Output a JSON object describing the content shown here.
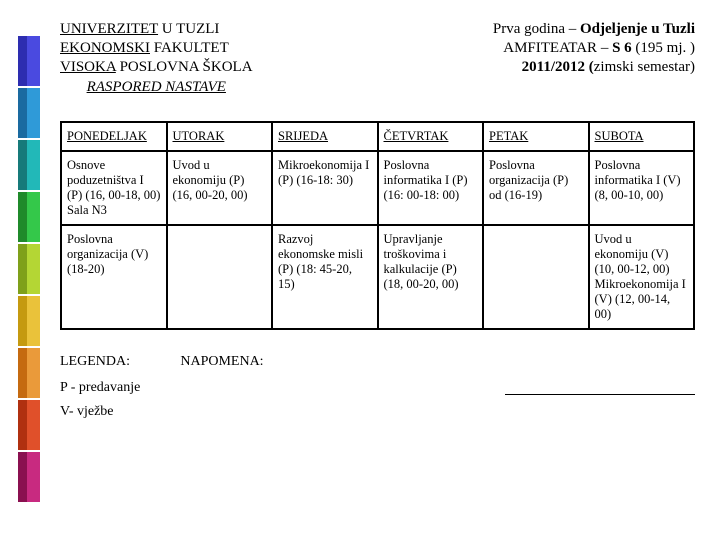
{
  "notch_colors": [
    {
      "c1": "#2d2db0",
      "c2": "#4a4ae0"
    },
    {
      "c1": "#1a6aa0",
      "c2": "#2f9ad8"
    },
    {
      "c1": "#167a7a",
      "c2": "#22b8b8"
    },
    {
      "c1": "#1f8a2a",
      "c2": "#34c84a"
    },
    {
      "c1": "#7fa01a",
      "c2": "#b4d634"
    },
    {
      "c1": "#c59a10",
      "c2": "#eac23a"
    },
    {
      "c1": "#c56a10",
      "c2": "#ea9a3a"
    },
    {
      "c1": "#b03010",
      "c2": "#e0502a"
    },
    {
      "c1": "#8a1050",
      "c2": "#c82a80"
    }
  ],
  "header": {
    "left": {
      "line1_u": "UNIVERZITET",
      "line1_rest": " U TUZLI",
      "line2_u": "EKONOMSKI",
      "line2_rest": " FAKULTET",
      "line3_u": "VISOKA",
      "line3_rest": " POSLOVNA ŠKOLA",
      "line4": "RASPORED NASTAVE"
    },
    "right": {
      "line1_pre": "Prva godina – ",
      "line1_b": "Odjeljenje u Tuzli",
      "line2_pre": "AMFITEATAR – ",
      "line2_b": "S 6",
      "line2_post": "   (195 mj. )",
      "line3_b": "2011/2012 (",
      "line3_post": "zimski semestar)"
    }
  },
  "table": {
    "headers": [
      "PONEDELJAK",
      "UTORAK",
      "SRIJEDA",
      "ČETVRTAK",
      "PETAK",
      "SUBOTA"
    ],
    "rows": [
      [
        "Osnove poduzetništva I (P) (16, 00-18, 00) Sala N3",
        "Uvod u ekonomiju (P) (16, 00-20, 00)",
        "Mikroekonomija  I          (P) (16-18: 30)",
        "Poslovna informatika I (P) (16: 00-18: 00)",
        "Poslovna organizacija (P) od (16-19)",
        "Poslovna informatika I (V) (8, 00-10, 00)"
      ],
      [
        "Poslovna organizacija (V) (18-20)",
        "",
        "Razvoj ekonomske misli (P) (18: 45-20, 15)",
        "Upravljanje troškovima i kalkulacije (P) (18, 00-20, 00)",
        "",
        "Uvod u ekonomiju (V) (10, 00-12, 00) Mikroekonomija I (V) (12, 00-14, 00)"
      ]
    ]
  },
  "footer": {
    "legenda": "LEGENDA:",
    "napomena": "NAPOMENA:",
    "p": "P - predavanje",
    "v": "V- vježbe"
  }
}
